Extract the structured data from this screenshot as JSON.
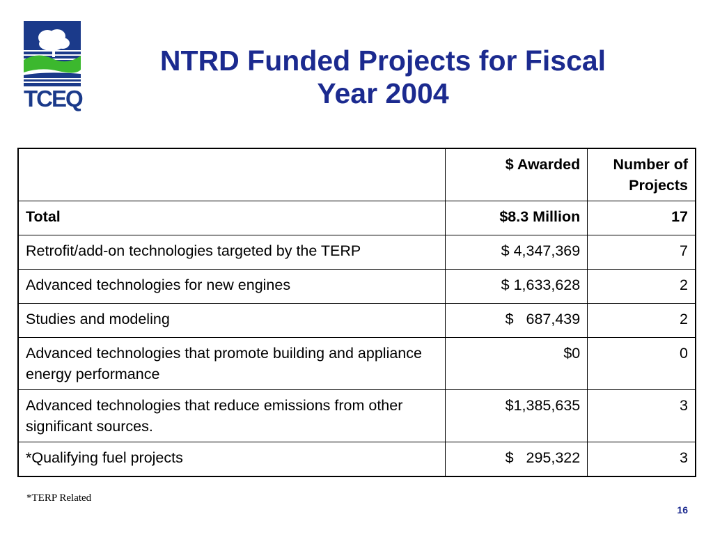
{
  "logo": {
    "text": "TCEQ",
    "colors": {
      "blue": "#1b3a8a",
      "green": "#3cb82e",
      "white": "#ffffff"
    }
  },
  "title": {
    "line1": "NTRD Funded Projects for Fiscal",
    "line2": "Year 2004"
  },
  "table": {
    "headers": {
      "category": "",
      "awarded": "$ Awarded",
      "number": "Number of Projects"
    },
    "total": {
      "label": "Total",
      "awarded": "$8.3 Million",
      "number": "17"
    },
    "rows": [
      {
        "label": "Retrofit/add-on technologies targeted by the TERP",
        "awarded": "$ 4,347,369",
        "number": "7"
      },
      {
        "label": "Advanced technologies for new engines",
        "awarded": "$ 1,633,628",
        "number": "2"
      },
      {
        "label": "Studies and modeling",
        "awarded": "$   687,439",
        "number": "2"
      },
      {
        "label": "Advanced technologies that promote building and appliance energy performance",
        "awarded": "$0",
        "number": "0"
      },
      {
        "label": "Advanced technologies that reduce emissions from other significant sources.",
        "awarded": "$1,385,635",
        "number": "3"
      },
      {
        "label": "*Qualifying fuel projects",
        "awarded": "$   295,322",
        "number": "3"
      }
    ]
  },
  "footnote": "*TERP Related",
  "page_number": "16"
}
